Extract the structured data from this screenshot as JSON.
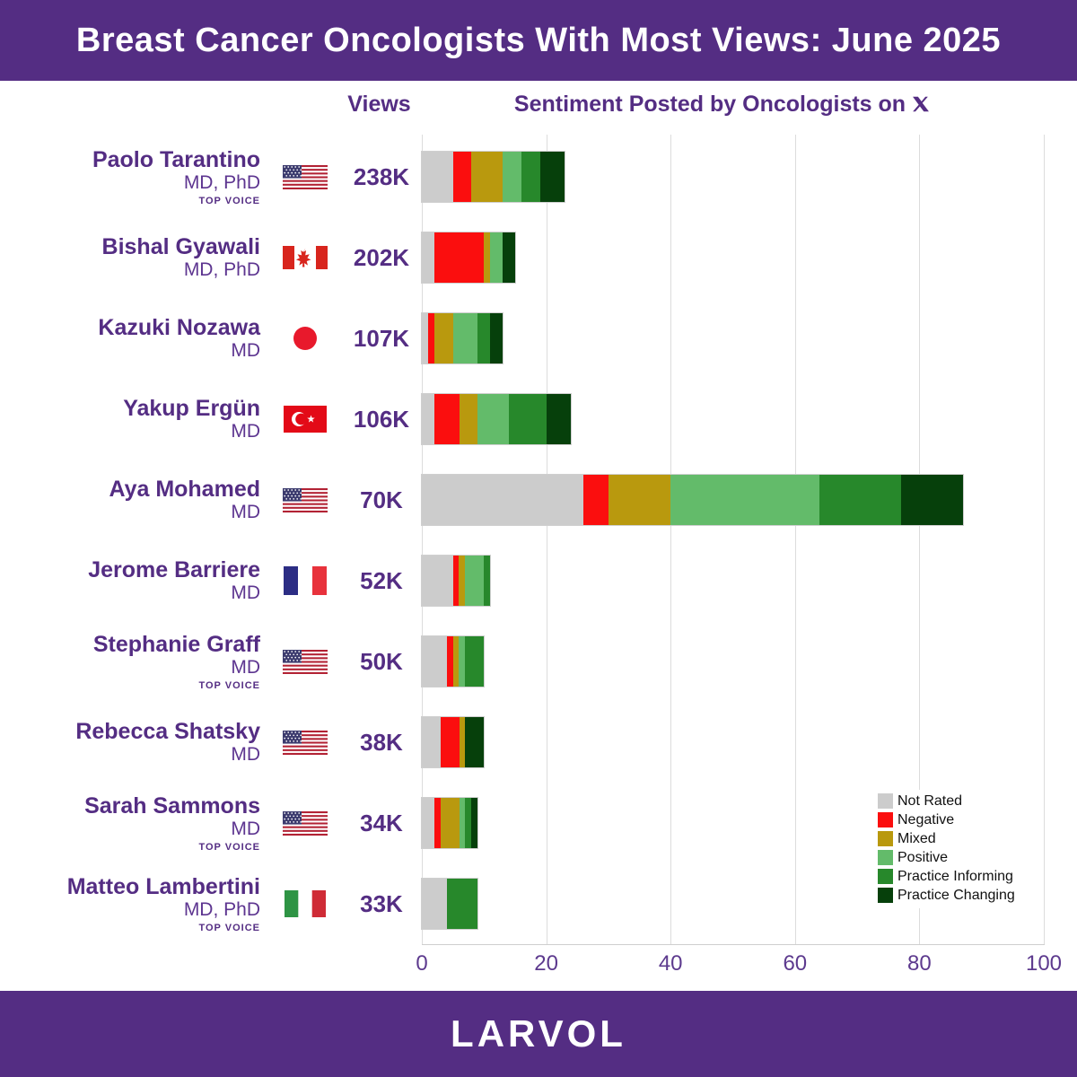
{
  "header": {
    "title": "Breast Cancer Oncologists With Most Views: June 2025",
    "bg_color": "#542d83",
    "text_color": "#ffffff"
  },
  "columns": {
    "views_label": "Views",
    "sentiment_label": "Sentiment Posted by Oncologists on",
    "platform": "X"
  },
  "legend": {
    "position": "inside-bottom-right",
    "items": [
      {
        "label": "Not Rated",
        "color": "#cccccc"
      },
      {
        "label": "Negative",
        "color": "#fb0e0e"
      },
      {
        "label": "Mixed",
        "color": "#b9990e"
      },
      {
        "label": "Positive",
        "color": "#63bb6a"
      },
      {
        "label": "Practice Informing",
        "color": "#27882b"
      },
      {
        "label": "Practice Changing",
        "color": "#06400b"
      }
    ]
  },
  "rows": [
    {
      "name": "Paolo Tarantino",
      "credentials": "MD, PhD",
      "badge": "TOP VOICE",
      "flag": "us",
      "country": "United States",
      "views": "238K",
      "segments": [
        5,
        3,
        5,
        3,
        3,
        4
      ]
    },
    {
      "name": "Bishal Gyawali",
      "credentials": "MD, PhD",
      "badge": "",
      "flag": "ca",
      "country": "Canada",
      "views": "202K",
      "segments": [
        2,
        8,
        1,
        2,
        0,
        2
      ]
    },
    {
      "name": "Kazuki Nozawa",
      "credentials": "MD",
      "badge": "",
      "flag": "jp",
      "country": "Japan",
      "views": "107K",
      "segments": [
        1,
        1,
        3,
        4,
        2,
        2
      ]
    },
    {
      "name": "Yakup Ergün",
      "credentials": "MD",
      "badge": "",
      "flag": "tr",
      "country": "Turkey",
      "views": "106K",
      "segments": [
        2,
        4,
        3,
        5,
        6,
        4
      ]
    },
    {
      "name": "Aya Mohamed",
      "credentials": "MD",
      "badge": "",
      "flag": "us",
      "country": "United States",
      "views": "70K",
      "segments": [
        26,
        4,
        10,
        24,
        13,
        10
      ]
    },
    {
      "name": "Jerome Barriere",
      "credentials": "MD",
      "badge": "",
      "flag": "fr",
      "country": "France",
      "views": "52K",
      "segments": [
        5,
        1,
        1,
        3,
        1,
        0
      ]
    },
    {
      "name": "Stephanie Graff",
      "credentials": "MD",
      "badge": "TOP VOICE",
      "flag": "us",
      "country": "United States",
      "views": "50K",
      "segments": [
        4,
        1,
        1,
        1,
        3,
        0
      ]
    },
    {
      "name": "Rebecca Shatsky",
      "credentials": "MD",
      "badge": "",
      "flag": "us",
      "country": "United States",
      "views": "38K",
      "segments": [
        3,
        3,
        1,
        0,
        0,
        3
      ]
    },
    {
      "name": "Sarah Sammons",
      "credentials": "MD",
      "badge": "TOP VOICE",
      "flag": "us",
      "country": "United States",
      "views": "34K",
      "segments": [
        2,
        1,
        3,
        1,
        1,
        1
      ]
    },
    {
      "name": "Matteo Lambertini",
      "credentials": "MD, PhD",
      "badge": "TOP VOICE",
      "flag": "it",
      "country": "Italy",
      "views": "33K",
      "segments": [
        4,
        0,
        0,
        0,
        5,
        0
      ]
    }
  ],
  "chart_data": {
    "type": "bar",
    "stacked": true,
    "orientation": "horizontal",
    "title": "Breast Cancer Oncologists With Most Views: June 2025",
    "categories": [
      "Paolo Tarantino",
      "Bishal Gyawali",
      "Kazuki Nozawa",
      "Yakup Ergün",
      "Aya Mohamed",
      "Jerome Barriere",
      "Stephanie Graff",
      "Rebecca Shatsky",
      "Sarah Sammons",
      "Matteo Lambertini"
    ],
    "views": [
      "238K",
      "202K",
      "107K",
      "106K",
      "70K",
      "52K",
      "50K",
      "38K",
      "34K",
      "33K"
    ],
    "series": [
      {
        "name": "Not Rated",
        "color": "#cccccc",
        "values": [
          5,
          2,
          1,
          2,
          26,
          5,
          4,
          3,
          2,
          4
        ]
      },
      {
        "name": "Negative",
        "color": "#fb0e0e",
        "values": [
          3,
          8,
          1,
          4,
          4,
          1,
          1,
          3,
          1,
          0
        ]
      },
      {
        "name": "Mixed",
        "color": "#b9990e",
        "values": [
          5,
          1,
          3,
          3,
          10,
          1,
          1,
          1,
          3,
          0
        ]
      },
      {
        "name": "Positive",
        "color": "#63bb6a",
        "values": [
          3,
          2,
          4,
          5,
          24,
          3,
          1,
          0,
          1,
          0
        ]
      },
      {
        "name": "Practice Informing",
        "color": "#27882b",
        "values": [
          3,
          0,
          2,
          6,
          13,
          1,
          3,
          0,
          1,
          5
        ]
      },
      {
        "name": "Practice Changing",
        "color": "#06400b",
        "values": [
          4,
          2,
          2,
          4,
          10,
          0,
          0,
          3,
          1,
          0
        ]
      }
    ],
    "xlabel": "",
    "ylabel": "",
    "xlim": [
      0,
      100
    ],
    "xticks": [
      0,
      20,
      40,
      60,
      80,
      100
    ],
    "grid": "vertical",
    "legend_position": "inside-bottom-right"
  },
  "footer": {
    "brand": "LARVOL",
    "bg_color": "#542d83"
  }
}
